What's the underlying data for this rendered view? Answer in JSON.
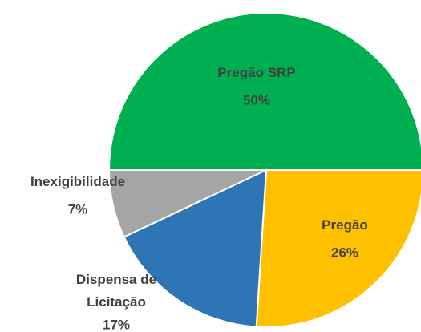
{
  "chart_data": {
    "type": "pie",
    "categories": [
      "Pregão SRP",
      "Pregão",
      "Dispensa de Licitação",
      "Inexigibilidade"
    ],
    "values": [
      50,
      26,
      17,
      7
    ],
    "value_labels": [
      "50%",
      "26%",
      "17%",
      "7%"
    ],
    "colors": [
      "#00b050",
      "#ffc000",
      "#2e75b6",
      "#a5a5a5"
    ]
  }
}
